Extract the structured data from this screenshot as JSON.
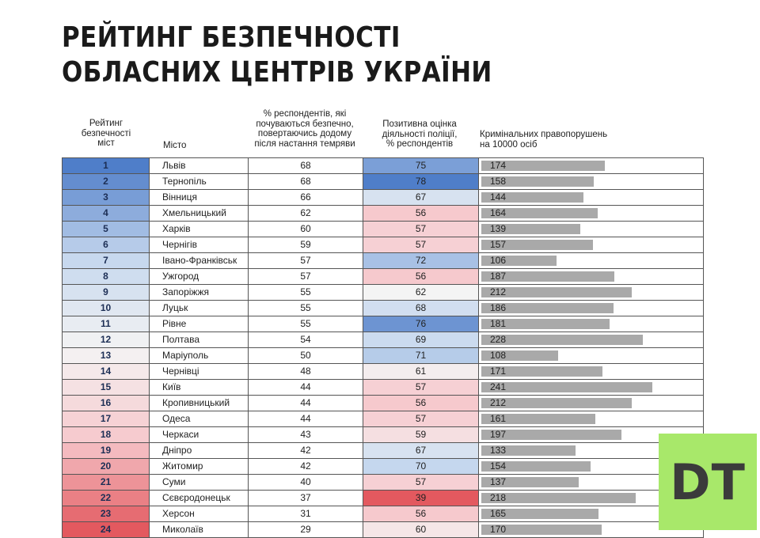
{
  "title_lines": [
    "РЕЙТИНГ БЕЗПЕЧНОСТІ",
    "ОБЛАСНИХ ЦЕНТРІВ УКРАЇНИ"
  ],
  "headers": {
    "rank": [
      "Рейтинг",
      "безпечності",
      "міст"
    ],
    "city": [
      "Місто"
    ],
    "safe": [
      "% респондентів, які",
      "почуваються безпечно,",
      "повертаючись додому",
      "після настання темряви"
    ],
    "police": [
      "Позитивна оцінка",
      "діяльності поліції,",
      "% респондентів"
    ],
    "crime": [
      "Кримінальних правопорушень",
      "на 10000 осіб"
    ]
  },
  "colors": {
    "high_blue": "#4f7ec9",
    "mid_blue": "#c5d7ee",
    "neutral": "#f4f4f4",
    "mid_red": "#f6c9cd",
    "high_red": "#e3595f",
    "bar_gray": "#a9a9a9",
    "logo_bg": "#a8e86a"
  },
  "logo_text": "DT",
  "chart_data": {
    "type": "table",
    "columns": [
      "rank",
      "city",
      "safe_pct",
      "police_positive_pct",
      "crimes_per_10000"
    ],
    "rows": [
      {
        "rank": 1,
        "city": "Львів",
        "safe": 68,
        "police": 75,
        "crime": 174
      },
      {
        "rank": 2,
        "city": "Тернопіль",
        "safe": 68,
        "police": 78,
        "crime": 158
      },
      {
        "rank": 3,
        "city": "Вінниця",
        "safe": 66,
        "police": 67,
        "crime": 144
      },
      {
        "rank": 4,
        "city": "Хмельницький",
        "safe": 62,
        "police": 56,
        "crime": 164
      },
      {
        "rank": 5,
        "city": "Харків",
        "safe": 60,
        "police": 57,
        "crime": 139
      },
      {
        "rank": 6,
        "city": "Чернігів",
        "safe": 59,
        "police": 57,
        "crime": 157
      },
      {
        "rank": 7,
        "city": "Івано-Франківськ",
        "safe": 57,
        "police": 72,
        "crime": 106
      },
      {
        "rank": 8,
        "city": "Ужгород",
        "safe": 57,
        "police": 56,
        "crime": 187
      },
      {
        "rank": 9,
        "city": "Запоріжжя",
        "safe": 55,
        "police": 62,
        "crime": 212
      },
      {
        "rank": 10,
        "city": "Луцьк",
        "safe": 55,
        "police": 68,
        "crime": 186
      },
      {
        "rank": 11,
        "city": "Рівне",
        "safe": 55,
        "police": 76,
        "crime": 181
      },
      {
        "rank": 12,
        "city": "Полтава",
        "safe": 54,
        "police": 69,
        "crime": 228
      },
      {
        "rank": 13,
        "city": "Маріуполь",
        "safe": 50,
        "police": 71,
        "crime": 108
      },
      {
        "rank": 14,
        "city": "Чернівці",
        "safe": 48,
        "police": 61,
        "crime": 171
      },
      {
        "rank": 15,
        "city": "Київ",
        "safe": 44,
        "police": 57,
        "crime": 241
      },
      {
        "rank": 16,
        "city": "Кропивницький",
        "safe": 44,
        "police": 56,
        "crime": 212
      },
      {
        "rank": 17,
        "city": "Одеса",
        "safe": 44,
        "police": 57,
        "crime": 161
      },
      {
        "rank": 18,
        "city": "Черкаси",
        "safe": 43,
        "police": 59,
        "crime": 197
      },
      {
        "rank": 19,
        "city": "Дніпро",
        "safe": 42,
        "police": 67,
        "crime": 133
      },
      {
        "rank": 20,
        "city": "Житомир",
        "safe": 42,
        "police": 70,
        "crime": 154
      },
      {
        "rank": 21,
        "city": "Суми",
        "safe": 40,
        "police": 57,
        "crime": 137
      },
      {
        "rank": 22,
        "city": "Сєвєродонецьк",
        "safe": 37,
        "police": 39,
        "crime": 218
      },
      {
        "rank": 23,
        "city": "Херсон",
        "safe": 31,
        "police": 56,
        "crime": 165
      },
      {
        "rank": 24,
        "city": "Миколаїв",
        "safe": 29,
        "police": 60,
        "crime": 170
      }
    ]
  }
}
